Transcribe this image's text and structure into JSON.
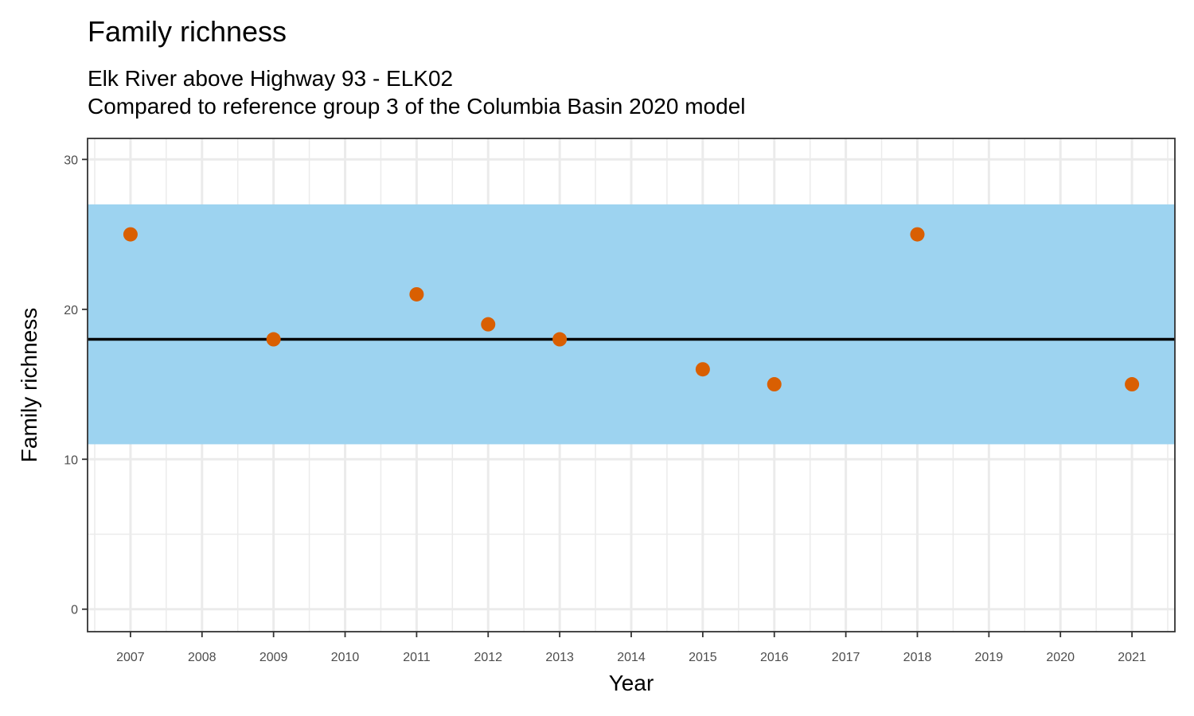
{
  "chart_data": {
    "type": "scatter",
    "title": "Family richness",
    "subtitle_lines": [
      "Elk River above Highway 93 - ELK02",
      "Compared to reference group 3 of the Columbia Basin 2020 model"
    ],
    "xlabel": "Year",
    "ylabel": "Family richness",
    "x_categories": [
      "2007",
      "2008",
      "2009",
      "2010",
      "2011",
      "2012",
      "2013",
      "2014",
      "2015",
      "2016",
      "2017",
      "2018",
      "2019",
      "2020",
      "2021"
    ],
    "y_ticks": [
      0,
      10,
      20,
      30
    ],
    "ylim": [
      -1.5,
      31.4
    ],
    "points": [
      {
        "x": "2007",
        "y": 25
      },
      {
        "x": "2009",
        "y": 18
      },
      {
        "x": "2011",
        "y": 21
      },
      {
        "x": "2012",
        "y": 19
      },
      {
        "x": "2013",
        "y": 18
      },
      {
        "x": "2015",
        "y": 16
      },
      {
        "x": "2016",
        "y": 15
      },
      {
        "x": "2018",
        "y": 25
      },
      {
        "x": "2021",
        "y": 15
      }
    ],
    "reference_band": {
      "low": 11,
      "high": 27,
      "color": "#9ad2f0"
    },
    "reference_line": {
      "value": 18,
      "color": "#000000"
    },
    "point_color": "#d95f02",
    "grid": true,
    "legend": "none"
  }
}
